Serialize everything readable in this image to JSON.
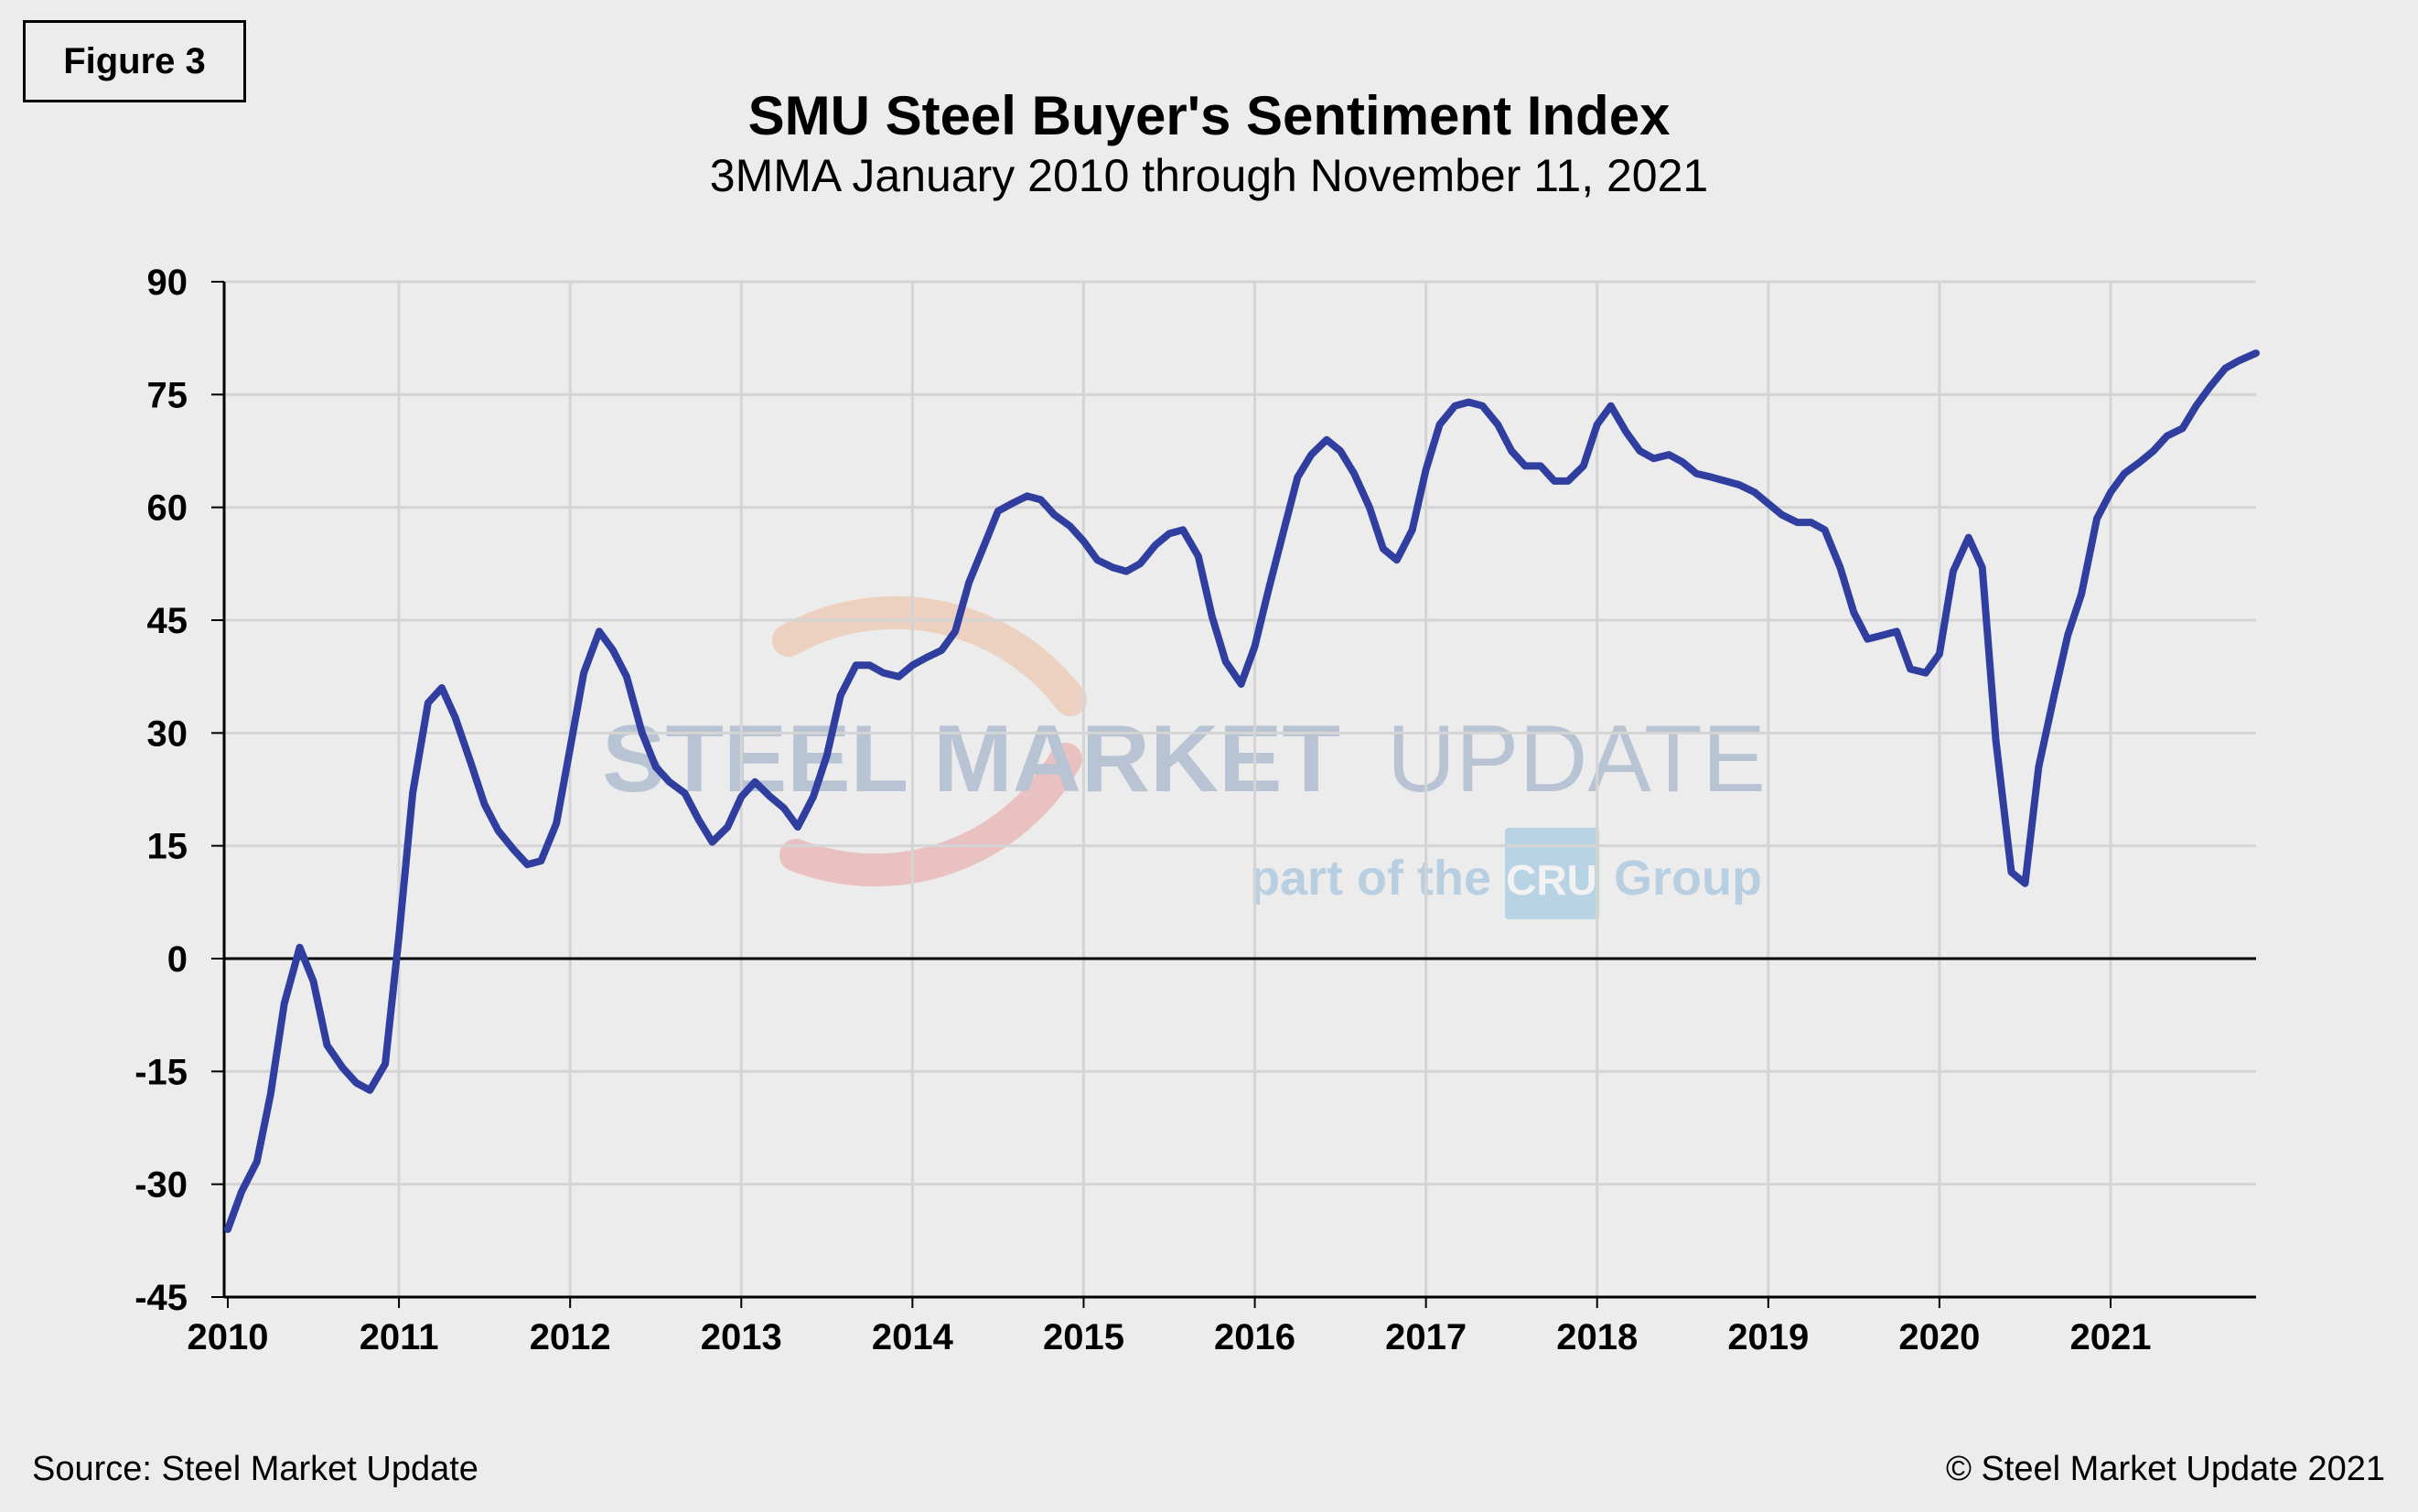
{
  "figure_label": "Figure 3",
  "title": "SMU Steel Buyer's Sentiment Index",
  "subtitle": "3MMA January 2010 through November 11, 2021",
  "source": "Source: Steel Market Update",
  "copyright": "© Steel Market Update 2021",
  "watermark": {
    "main_bold": "STEEL MARKET",
    "main_light": "UPDATE",
    "tag_before": "part of the",
    "tag_logo": "CRU",
    "tag_after": "Group"
  },
  "colors": {
    "line": "#303f9f",
    "grid": "#d4d4d4",
    "background": "#ececec"
  },
  "chart_data": {
    "type": "line",
    "title": "SMU Steel Buyer's Sentiment Index",
    "subtitle": "3MMA January 2010 through November 11, 2021",
    "xlabel": "",
    "ylabel": "",
    "ylim": [
      -45,
      90
    ],
    "yticks": [
      90,
      75,
      60,
      45,
      30,
      15,
      0,
      -15,
      -30,
      -45
    ],
    "xlim": [
      2010,
      2021.85
    ],
    "xticks": [
      2010,
      2011,
      2012,
      2013,
      2014,
      2015,
      2016,
      2017,
      2018,
      2019,
      2020,
      2021
    ],
    "grid": true,
    "legend": "none",
    "series": [
      {
        "values": [
          [
            2010.0,
            -36
          ],
          [
            2010.08,
            -31
          ],
          [
            2010.17,
            -27
          ],
          [
            2010.25,
            -18
          ],
          [
            2010.33,
            -6
          ],
          [
            2010.42,
            1.5
          ],
          [
            2010.5,
            -3
          ],
          [
            2010.58,
            -11.5
          ],
          [
            2010.67,
            -14.5
          ],
          [
            2010.75,
            -16.5
          ],
          [
            2010.83,
            -17.5
          ],
          [
            2010.92,
            -14
          ],
          [
            2011.0,
            3
          ],
          [
            2011.08,
            22
          ],
          [
            2011.17,
            34
          ],
          [
            2011.25,
            36
          ],
          [
            2011.33,
            32
          ],
          [
            2011.42,
            26
          ],
          [
            2011.5,
            20.5
          ],
          [
            2011.58,
            17
          ],
          [
            2011.67,
            14.5
          ],
          [
            2011.75,
            12.5
          ],
          [
            2011.83,
            13
          ],
          [
            2011.92,
            18
          ],
          [
            2012.0,
            28
          ],
          [
            2012.08,
            38
          ],
          [
            2012.17,
            43.5
          ],
          [
            2012.25,
            41
          ],
          [
            2012.33,
            37.5
          ],
          [
            2012.42,
            30
          ],
          [
            2012.5,
            25.5
          ],
          [
            2012.58,
            23.5
          ],
          [
            2012.67,
            22
          ],
          [
            2012.75,
            18.5
          ],
          [
            2012.83,
            15.5
          ],
          [
            2012.92,
            17.5
          ],
          [
            2013.0,
            21.5
          ],
          [
            2013.08,
            23.5
          ],
          [
            2013.17,
            21.5
          ],
          [
            2013.25,
            20
          ],
          [
            2013.33,
            17.5
          ],
          [
            2013.42,
            21.5
          ],
          [
            2013.5,
            27
          ],
          [
            2013.58,
            35
          ],
          [
            2013.67,
            39
          ],
          [
            2013.75,
            39
          ],
          [
            2013.83,
            38
          ],
          [
            2013.92,
            37.5
          ],
          [
            2014.0,
            39
          ],
          [
            2014.08,
            40
          ],
          [
            2014.17,
            41
          ],
          [
            2014.25,
            43.5
          ],
          [
            2014.33,
            50
          ],
          [
            2014.42,
            55
          ],
          [
            2014.5,
            59.5
          ],
          [
            2014.58,
            60.5
          ],
          [
            2014.67,
            61.5
          ],
          [
            2014.75,
            61
          ],
          [
            2014.83,
            59
          ],
          [
            2014.92,
            57.5
          ],
          [
            2015.0,
            55.5
          ],
          [
            2015.08,
            53
          ],
          [
            2015.17,
            52
          ],
          [
            2015.25,
            51.5
          ],
          [
            2015.33,
            52.5
          ],
          [
            2015.42,
            55
          ],
          [
            2015.5,
            56.5
          ],
          [
            2015.58,
            57
          ],
          [
            2015.67,
            53.5
          ],
          [
            2015.75,
            45.5
          ],
          [
            2015.83,
            39.5
          ],
          [
            2015.92,
            36.5
          ],
          [
            2016.0,
            41.5
          ],
          [
            2016.08,
            49
          ],
          [
            2016.17,
            57
          ],
          [
            2016.25,
            64
          ],
          [
            2016.33,
            67
          ],
          [
            2016.42,
            69
          ],
          [
            2016.5,
            67.5
          ],
          [
            2016.58,
            64.5
          ],
          [
            2016.67,
            60
          ],
          [
            2016.75,
            54.5
          ],
          [
            2016.83,
            53
          ],
          [
            2016.92,
            57
          ],
          [
            2017.0,
            65
          ],
          [
            2017.08,
            71
          ],
          [
            2017.17,
            73.5
          ],
          [
            2017.25,
            74
          ],
          [
            2017.33,
            73.5
          ],
          [
            2017.42,
            71
          ],
          [
            2017.5,
            67.5
          ],
          [
            2017.58,
            65.5
          ],
          [
            2017.67,
            65.5
          ],
          [
            2017.75,
            63.5
          ],
          [
            2017.83,
            63.5
          ],
          [
            2017.92,
            65.5
          ],
          [
            2018.0,
            71
          ],
          [
            2018.08,
            73.5
          ],
          [
            2018.17,
            70
          ],
          [
            2018.25,
            67.5
          ],
          [
            2018.33,
            66.5
          ],
          [
            2018.42,
            67
          ],
          [
            2018.5,
            66
          ],
          [
            2018.58,
            64.5
          ],
          [
            2018.67,
            64
          ],
          [
            2018.75,
            63.5
          ],
          [
            2018.83,
            63
          ],
          [
            2018.92,
            62
          ],
          [
            2019.0,
            60.5
          ],
          [
            2019.08,
            59
          ],
          [
            2019.17,
            58
          ],
          [
            2019.25,
            58
          ],
          [
            2019.33,
            57
          ],
          [
            2019.42,
            52
          ],
          [
            2019.5,
            46
          ],
          [
            2019.58,
            42.5
          ],
          [
            2019.67,
            43
          ],
          [
            2019.75,
            43.5
          ],
          [
            2019.83,
            38.5
          ],
          [
            2019.92,
            38
          ],
          [
            2020.0,
            40.5
          ],
          [
            2020.08,
            51.5
          ],
          [
            2020.17,
            56
          ],
          [
            2020.25,
            52
          ],
          [
            2020.33,
            29
          ],
          [
            2020.42,
            11.5
          ],
          [
            2020.5,
            10
          ],
          [
            2020.58,
            25.5
          ],
          [
            2020.67,
            35
          ],
          [
            2020.75,
            43
          ],
          [
            2020.83,
            48.5
          ],
          [
            2020.92,
            58.5
          ],
          [
            2021.0,
            62
          ],
          [
            2021.08,
            64.5
          ],
          [
            2021.17,
            66
          ],
          [
            2021.25,
            67.5
          ],
          [
            2021.33,
            69.5
          ],
          [
            2021.42,
            70.5
          ],
          [
            2021.5,
            73.5
          ],
          [
            2021.58,
            76
          ],
          [
            2021.67,
            78.5
          ],
          [
            2021.75,
            79.5
          ],
          [
            2021.85,
            80.5
          ]
        ]
      }
    ]
  }
}
